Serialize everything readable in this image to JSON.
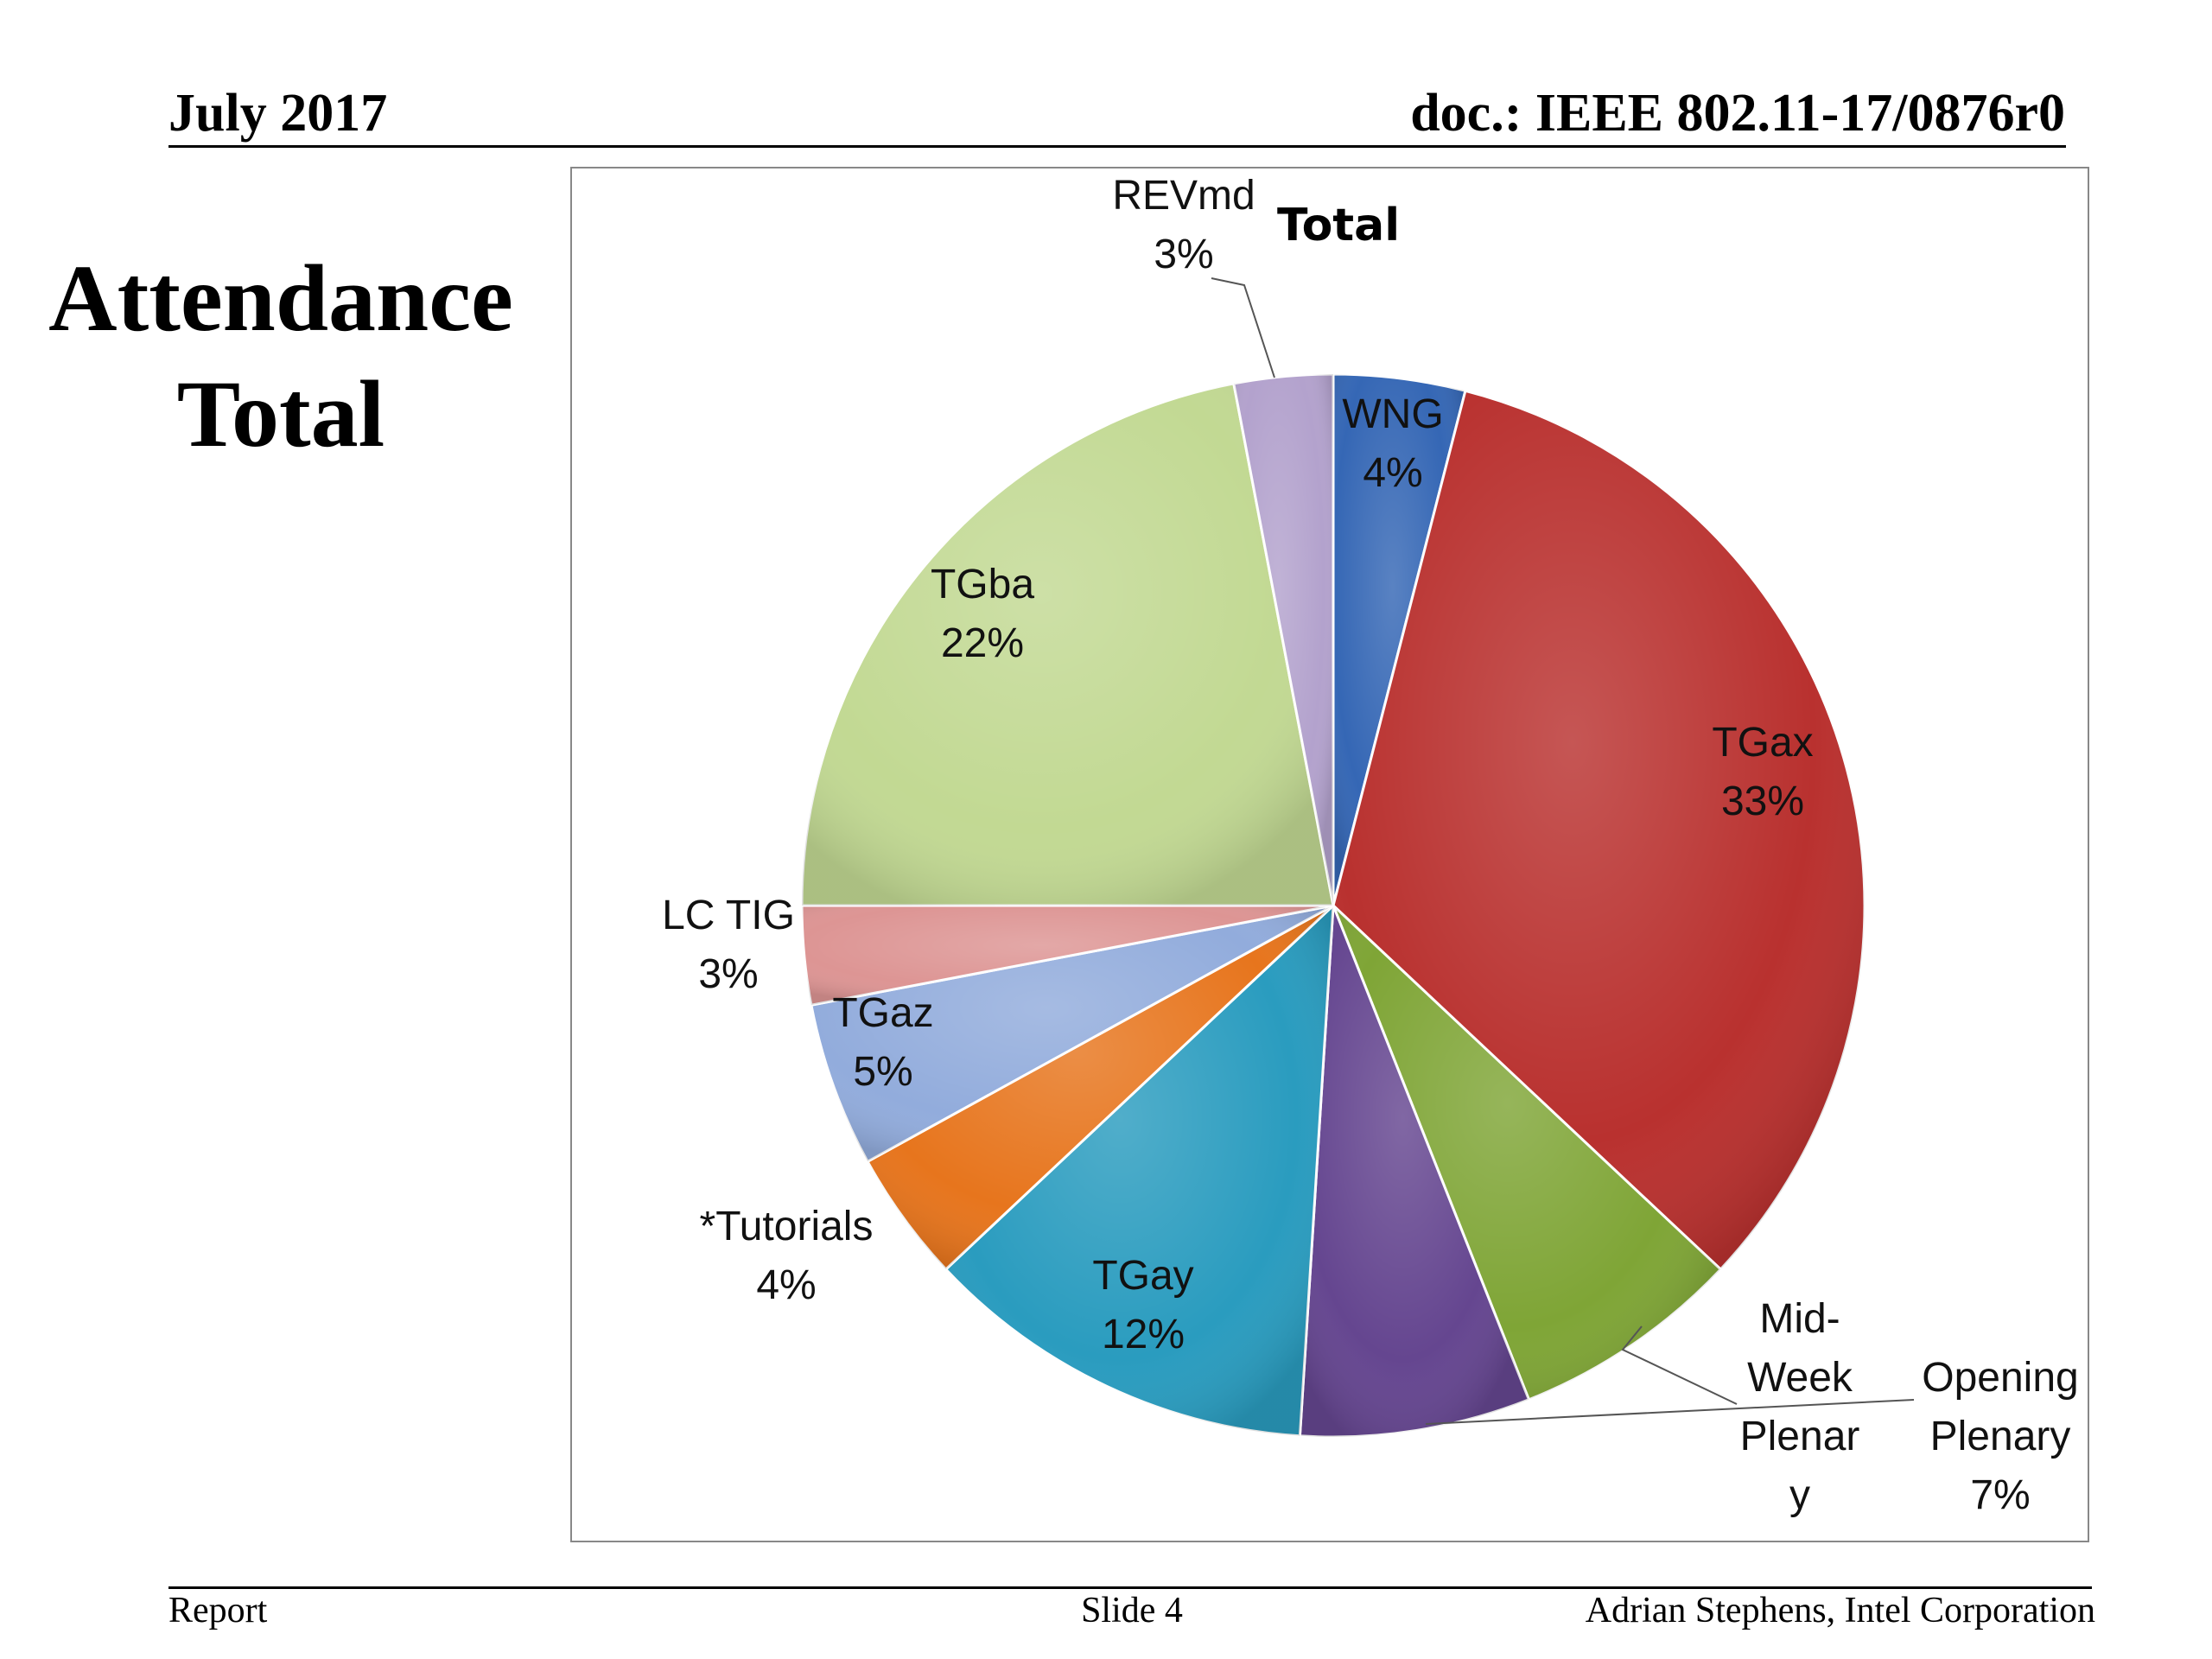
{
  "header": {
    "date": "July 2017",
    "doc_id": "doc.: IEEE 802.11-17/0876r0"
  },
  "slide": {
    "title_line1": "Attendance",
    "title_line2": "Total"
  },
  "footer": {
    "left": "Report",
    "center": "Slide 4",
    "right": "Adrian Stephens, Intel Corporation"
  },
  "chart_data": {
    "type": "pie",
    "title": "Total",
    "start_angle_deg": -90,
    "direction": "clockwise",
    "slices": [
      {
        "name": "WNG",
        "percent": 4,
        "label_lines": [
          "WNG",
          "4%"
        ],
        "color": "#3567b5"
      },
      {
        "name": "TGax",
        "percent": 33,
        "label_lines": [
          "TGax",
          "33%"
        ],
        "color": "#b9312f"
      },
      {
        "name": "Mid-Week Plenary",
        "percent": 7,
        "label_lines": [
          "Mid-",
          "Week",
          "Plenar",
          "y"
        ],
        "color": "#7fa536"
      },
      {
        "name": "Opening Plenary",
        "percent": 7,
        "label_lines": [
          "Opening",
          "Plenary",
          "7%"
        ],
        "color": "#654690"
      },
      {
        "name": "TGay",
        "percent": 12,
        "label_lines": [
          "TGay",
          "12%"
        ],
        "color": "#2a9cbf"
      },
      {
        "name": "*Tutorials",
        "percent": 4,
        "label_lines": [
          "*Tutorials",
          "4%"
        ],
        "color": "#e7751d"
      },
      {
        "name": "TGaz",
        "percent": 5,
        "label_lines": [
          "TGaz",
          "5%"
        ],
        "color": "#92acdc"
      },
      {
        "name": "LC TIG",
        "percent": 3,
        "label_lines": [
          "LC TIG",
          "3%"
        ],
        "color": "#dd9594"
      },
      {
        "name": "TGba",
        "percent": 22,
        "label_lines": [
          "TGba",
          "22%"
        ],
        "color": "#c2d993"
      },
      {
        "name": "REVmd",
        "percent": 3,
        "label_lines": [
          "REVmd",
          "3%"
        ],
        "color": "#b3a2cd"
      }
    ]
  }
}
